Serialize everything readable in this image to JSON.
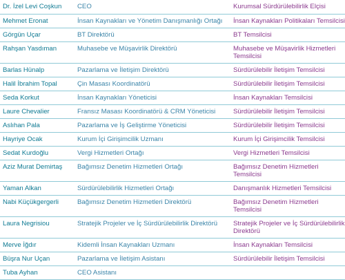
{
  "rows": [
    {
      "name": "Dr. İzel Levi Coşkun",
      "title": "CEO",
      "role": "Kurumsal Sürdürülebilirlik Elçisi"
    },
    {
      "name": "Mehmet Eronat",
      "title": "İnsan Kaynakları ve Yönetim Danışmanlığı Ortağı",
      "role": "İnsan Kaynakları Politikaları Temsilcisi"
    },
    {
      "name": "Görgün Uçar",
      "title": "BT Direktörü",
      "role": "BT Temsilcisi"
    },
    {
      "name": "Rahşan Yasdıman",
      "title": "Muhasebe ve Müşavirlik Direktörü",
      "role": "Muhasebe ve Müşavirlik Hizmetleri Temsilcisi"
    },
    {
      "name": "Barlas Hünalp",
      "title": "Pazarlama ve İletişim Direktörü",
      "role": "Sürdürülebilir İletişim Temsilcisi"
    },
    {
      "name": "Halil İbrahim Topal",
      "title": "Çin Masası Koordinatörü",
      "role": "Sürdürülebilir İletişim Temsilcisi"
    },
    {
      "name": "Seda Korkut",
      "title": "İnsan Kaynakları Yöneticisi",
      "role": "İnsan Kaynakları Temsilcisi"
    },
    {
      "name": "Laure Chevalier",
      "title": "Fransız Masası Koordinatörü & CRM Yöneticisi",
      "role": "Sürdürülebilir İletişim Temsilcisi"
    },
    {
      "name": "Aslıhan Pala",
      "title": "Pazarlama ve İş Geliştirme Yöneticisi",
      "role": "Sürdürülebilir İletişim Temsilcisi"
    },
    {
      "name": "Hayriye Ocak",
      "title": "Kurum İçi Girişimcilik Uzmanı",
      "role": "Kurum İçi Girişimcilik Temsilcisi"
    },
    {
      "name": "Sedat Kurdoğlu",
      "title": "Vergi Hizmetleri Ortağı",
      "role": "Vergi Hizmetleri Temsilcisi"
    },
    {
      "name": "Aziz Murat Demirtaş",
      "title": "Bağımsız Denetim Hizmetleri Ortağı",
      "role": "Bağımsız Denetim Hizmetleri Temsilcisi"
    },
    {
      "name": "Yaman Alkan",
      "title": "Sürdürülebilirlik Hizmetleri Ortağı",
      "role": "Danışmanlık Hizmetleri Temsilcisi"
    },
    {
      "name": "Nabi Küçükgergerli",
      "title": "Bağımsız Denetim Hizmetleri Direktörü",
      "role": "Bağımsız Denetim Hizmetleri Temsilcisi"
    },
    {
      "name": "Laura Negrisiou",
      "title": "Stratejik Projeler ve İç Sürdürülebilirlik Direktörü",
      "role": "Stratejik Projeler ve İç Sürdürülebilirlik Direktörü"
    },
    {
      "name": "Merve İğdır",
      "title": "Kidemli İnsan Kaynakları Uzmanı",
      "role": "İnsan Kaynakları Temsilcisi"
    },
    {
      "name": "Büşra Nur Uçan",
      "title": "Pazarlama ve İletişim Asistanı",
      "role": "Sürdürülebilir İletişim Temsilcisi"
    },
    {
      "name": "Tuba Ayhan",
      "title": "CEO Asistanı",
      "role": ""
    }
  ]
}
